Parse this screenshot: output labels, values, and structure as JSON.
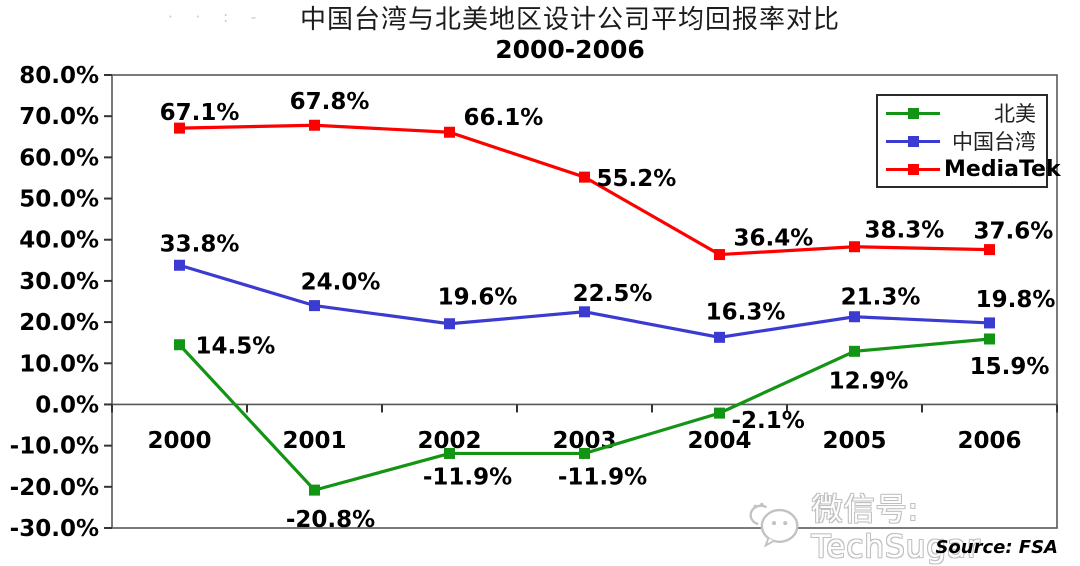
{
  "title": {
    "line1": "中国台湾与北美地区设计公司平均回报率对比",
    "line2": "2000-2006"
  },
  "watermark_remnant": "· ·  : -",
  "watermark": {
    "icon": "wechat-icon",
    "text": "微信号: TechSugar"
  },
  "source_label": "Source: FSA",
  "legend": {
    "position": "top-right",
    "items": [
      {
        "id": "north-america",
        "label": "北美",
        "color": "#149414",
        "bold": false
      },
      {
        "id": "taiwan-china",
        "label": "中国台湾",
        "color": "#3B3BD1",
        "bold": false
      },
      {
        "id": "mediatek",
        "label": "MediaTek",
        "color": "#FF0000",
        "bold": true
      }
    ]
  },
  "chart_data": {
    "type": "line",
    "title": "中国台湾与北美地区设计公司平均回报率对比 2000-2006",
    "categories": [
      "2000",
      "2001",
      "2002",
      "2003",
      "2004",
      "2005",
      "2006"
    ],
    "series": [
      {
        "name": "北美",
        "color": "#149414",
        "values": [
          14.5,
          -20.8,
          -11.9,
          -11.9,
          -2.1,
          12.9,
          15.9
        ]
      },
      {
        "name": "中国台湾",
        "color": "#3B3BD1",
        "values": [
          33.8,
          24.0,
          19.6,
          22.5,
          16.3,
          21.3,
          19.8
        ]
      },
      {
        "name": "MediaTek",
        "color": "#FF0000",
        "values": [
          67.1,
          67.8,
          66.1,
          55.2,
          36.4,
          38.3,
          37.6
        ]
      }
    ],
    "ylim": [
      -30,
      80
    ],
    "ytick_step": 10,
    "ytick_format": "0.0%",
    "xlabel": "",
    "ylabel": "",
    "grid": "zero-line-only",
    "legend_position": "top-right",
    "marker": "square",
    "data_labels": true
  }
}
